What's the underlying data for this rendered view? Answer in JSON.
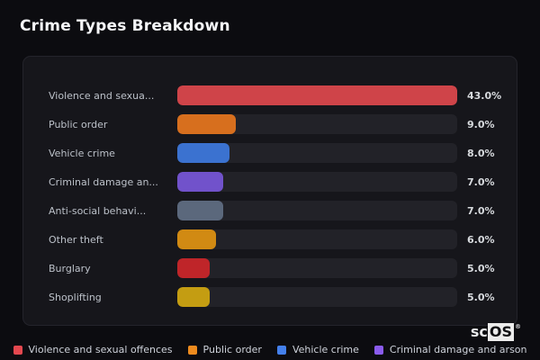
{
  "page": {
    "title": "Crime Types Breakdown"
  },
  "logo": {
    "prefix": "sc",
    "suffix": "OS",
    "registered": "®"
  },
  "chart_data": {
    "type": "bar",
    "orientation": "horizontal",
    "title": "Crime Types Breakdown",
    "xlabel": "",
    "ylabel": "",
    "xlim": [
      0,
      43
    ],
    "grid": false,
    "legend_position": "bottom",
    "categories": [
      "Violence and sexua...",
      "Public order",
      "Vehicle crime",
      "Criminal damage an...",
      "Anti-social behavi...",
      "Other theft",
      "Burglary",
      "Shoplifting"
    ],
    "values": [
      43.0,
      9.0,
      8.0,
      7.0,
      7.0,
      6.0,
      5.0,
      5.0
    ],
    "value_labels": [
      "43.0%",
      "9.0%",
      "8.0%",
      "7.0%",
      "7.0%",
      "6.0%",
      "5.0%",
      "5.0%"
    ],
    "bar_colors": [
      "#cf4449",
      "#d76f1e",
      "#3b72d0",
      "#7152cb",
      "#5b687c",
      "#d18a13",
      "#bf2529",
      "#c49d12"
    ],
    "track_color": "#222228",
    "legend": [
      {
        "label": "Violence and sexual offences",
        "color": "#e4484f"
      },
      {
        "label": "Public order",
        "color": "#ee8b1e"
      },
      {
        "label": "Vehicle crime",
        "color": "#4480ec"
      },
      {
        "label": "Criminal damage and arson",
        "color": "#8a5bec"
      }
    ]
  }
}
